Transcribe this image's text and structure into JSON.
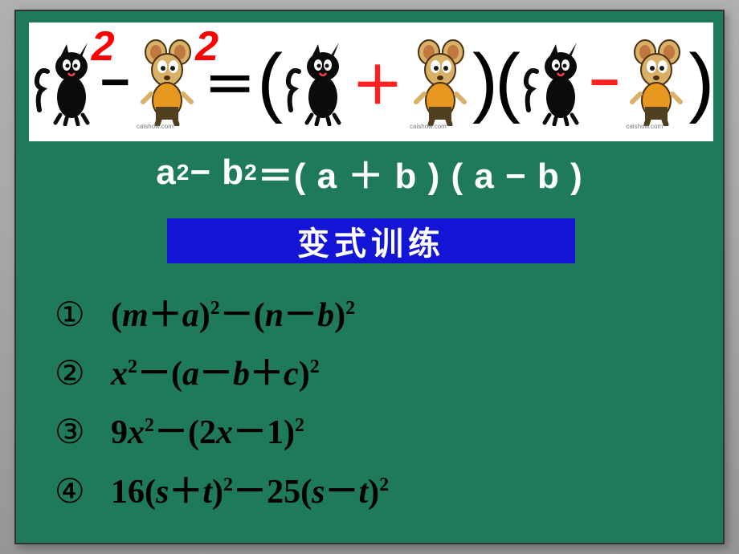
{
  "visual_formula": {
    "char1": "cat",
    "char2": "mouse",
    "sup_symbol": "2",
    "sup_color": "#ff0000",
    "minus_operator": "−",
    "equals": "＝",
    "plus_operator": "＋",
    "plus_color": "#ff2020",
    "minus2_color": "#ff2020",
    "paren_open": "(",
    "paren_close": ")",
    "watermark": "caishow.com",
    "background": "#ffffff"
  },
  "cat_svg_colors": {
    "body": "#0b0b0b",
    "highlight": "#ffffff",
    "mouth": "#ff4040"
  },
  "mouse_svg_colors": {
    "body": "#d8b068",
    "ear": "#c07840",
    "vest": "#e89820",
    "pants": "#504020",
    "outline": "#4a3010",
    "eye_white": "#ffffff"
  },
  "formula_bar": {
    "text_html": "a<sup>2</sup> − b<sup>2</sup> ＝( a ＋ b ) ( a − b )",
    "color": "#ffffff",
    "background": "#1f7a5a",
    "fontsize": 44
  },
  "title_bar": {
    "text": "变式训练",
    "background": "#1414d6",
    "color": "#ffffff",
    "fontsize": 40
  },
  "problems": {
    "background": "#1f7a5a",
    "text_color": "#000000",
    "items": [
      {
        "marker": "①",
        "html": "(<span class='var'>m</span>＋<span class='var'>a</span>)<sup>2</sup>－(<span class='var'>n</span>－<span class='var'>b</span>)<sup>2</sup>"
      },
      {
        "marker": "②",
        "html": "<span class='var'>x</span><sup>2</sup>－(<span class='var'>a</span>－<span class='var'>b</span>＋<span class='var'>c</span>)<sup>2</sup>"
      },
      {
        "marker": "③",
        "html": "<span class='num'>9</span><span class='var'>x</span><sup>2</sup>－(<span class='num'>2</span><span class='var'>x</span>－<span class='num'>1</span>)<sup>2</sup>"
      },
      {
        "marker": "④",
        "html": "<span class='num'>16</span>(<span class='var'>s</span>＋<span class='var'>t</span>)<sup>2</sup>－<span class='num'>25</span>(<span class='var'>s</span>－<span class='var'>t</span>)<sup>2</sup>"
      }
    ]
  },
  "slide": {
    "background": "#1f7a5a",
    "border_color": "#333333"
  },
  "page_background_gradient": [
    "#b0b0b0",
    "#969696"
  ]
}
